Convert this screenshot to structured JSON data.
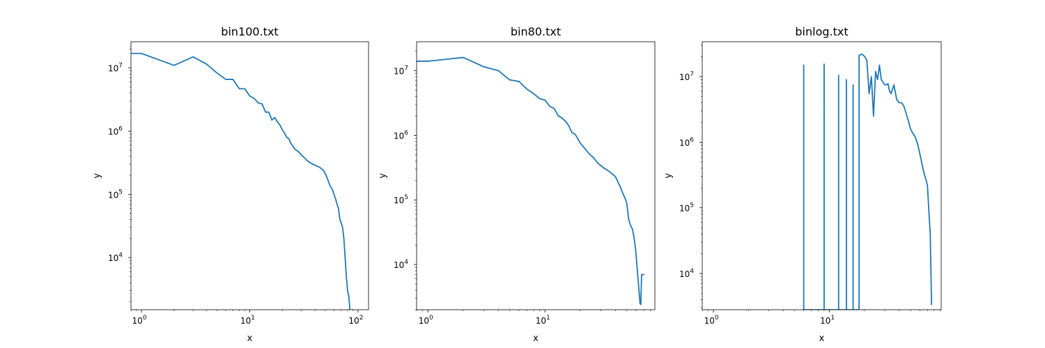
{
  "chart_data": [
    {
      "type": "line",
      "title": "bin100.txt",
      "xlabel": "x",
      "ylabel": "y",
      "xscale": "log",
      "yscale": "log",
      "xlim": [
        0.8,
        125
      ],
      "ylim": [
        1500,
        26000000
      ],
      "xticks": [
        {
          "base": "10",
          "exp": "0"
        },
        {
          "base": "10",
          "exp": "1"
        },
        {
          "base": "10",
          "exp": "2"
        }
      ],
      "yticks": [
        {
          "base": "10",
          "exp": "4"
        },
        {
          "base": "10",
          "exp": "5"
        },
        {
          "base": "10",
          "exp": "6"
        },
        {
          "base": "10",
          "exp": "7"
        }
      ],
      "series": [
        {
          "color": "#1f77b4",
          "x": [
            0.8,
            1,
            2,
            3,
            4,
            5,
            6,
            7,
            8,
            9,
            10,
            11,
            12,
            13,
            14,
            15,
            16,
            17,
            18,
            19,
            20,
            21,
            22,
            23,
            24,
            25,
            26,
            28,
            30,
            32,
            34,
            36,
            38,
            40,
            44,
            48,
            50,
            52,
            54,
            56,
            58,
            60,
            62,
            64,
            66,
            68,
            70,
            72,
            74,
            76,
            78,
            79,
            80,
            82,
            83,
            84
          ],
          "y": [
            17000000,
            17000000,
            11000000,
            15000000,
            11500000,
            8300000,
            6600000,
            6600000,
            4700000,
            4700000,
            3600000,
            3300000,
            2800000,
            2700000,
            2000000,
            2000000,
            1500000,
            1650000,
            1400000,
            1250000,
            1050000,
            920000,
            800000,
            760000,
            640000,
            580000,
            520000,
            480000,
            420000,
            380000,
            340000,
            320000,
            300000,
            290000,
            270000,
            240000,
            210000,
            180000,
            150000,
            130000,
            120000,
            100000,
            85000,
            70000,
            60000,
            40000,
            35000,
            30000,
            20000,
            10000,
            5000,
            4000,
            3000,
            2500,
            2000,
            1500
          ]
        }
      ]
    },
    {
      "type": "line",
      "title": "bin80.txt",
      "xlabel": "x",
      "ylabel": "y",
      "xscale": "log",
      "yscale": "log",
      "xlim": [
        0.8,
        87
      ],
      "ylim": [
        2000,
        28000000
      ],
      "xticks": [
        {
          "base": "10",
          "exp": "0"
        },
        {
          "base": "10",
          "exp": "1"
        }
      ],
      "yticks": [
        {
          "base": "10",
          "exp": "4"
        },
        {
          "base": "10",
          "exp": "5"
        },
        {
          "base": "10",
          "exp": "6"
        },
        {
          "base": "10",
          "exp": "7"
        }
      ],
      "series": [
        {
          "color": "#1f77b4",
          "x": [
            0.8,
            1,
            2,
            3,
            4,
            5,
            6,
            7,
            8,
            9,
            10,
            11,
            12,
            13,
            14,
            15,
            16,
            17,
            18,
            19,
            20,
            22,
            24,
            26,
            28,
            30,
            32,
            34,
            36,
            40,
            44,
            46,
            48,
            50,
            52,
            54,
            56,
            58,
            60,
            62,
            63,
            64,
            65,
            66,
            67,
            68,
            69,
            70,
            71
          ],
          "y": [
            14000000,
            14000000,
            16000000,
            11500000,
            10000000,
            7200000,
            6800000,
            5200000,
            4400000,
            3700000,
            3500000,
            2800000,
            2600000,
            2000000,
            1850000,
            1650000,
            1400000,
            1100000,
            1050000,
            900000,
            760000,
            620000,
            510000,
            450000,
            380000,
            340000,
            310000,
            290000,
            270000,
            230000,
            160000,
            130000,
            110000,
            90000,
            50000,
            40000,
            35000,
            25000,
            15000,
            7000,
            5000,
            3500,
            2500,
            2400,
            7000,
            7000,
            7000,
            7000,
            7000
          ]
        }
      ]
    },
    {
      "type": "line",
      "title": "binlog.txt",
      "xlabel": "x",
      "ylabel": "y",
      "xscale": "log",
      "yscale": "log",
      "xlim": [
        0.8,
        92
      ],
      "ylim": [
        2800,
        34000000
      ],
      "xticks": [
        {
          "base": "10",
          "exp": "0"
        },
        {
          "base": "10",
          "exp": "1"
        }
      ],
      "yticks": [
        {
          "base": "10",
          "exp": "4"
        },
        {
          "base": "10",
          "exp": "5"
        },
        {
          "base": "10",
          "exp": "6"
        },
        {
          "base": "10",
          "exp": "7"
        }
      ],
      "series": [
        {
          "color": "#1f77b4",
          "x": [
            6,
            6,
            6,
            9,
            9,
            9,
            12,
            12,
            12,
            14,
            14,
            14,
            16,
            16,
            16,
            18,
            18,
            19,
            20,
            21,
            22,
            23,
            24,
            25,
            26,
            27,
            28,
            30,
            31,
            32,
            33,
            34,
            36,
            38,
            40,
            42,
            44,
            46,
            48,
            50,
            52,
            55,
            58,
            61,
            64,
            66,
            68,
            70,
            72,
            74,
            76
          ],
          "y": [
            2800,
            15000000,
            2800,
            2800,
            15500000,
            2800,
            2800,
            10500000,
            2800,
            2800,
            9000000,
            2800,
            2800,
            7500000,
            2800,
            2800,
            21000000,
            22000000,
            20500000,
            18000000,
            5500000,
            10000000,
            2500000,
            12000000,
            9000000,
            15000000,
            9000000,
            7500000,
            7500000,
            7800000,
            6000000,
            5500000,
            7500000,
            4500000,
            4000000,
            4000000,
            3500000,
            2700000,
            2100000,
            1600000,
            1400000,
            1200000,
            900000,
            600000,
            400000,
            320000,
            270000,
            220000,
            90000,
            40000,
            3300
          ]
        }
      ]
    }
  ]
}
